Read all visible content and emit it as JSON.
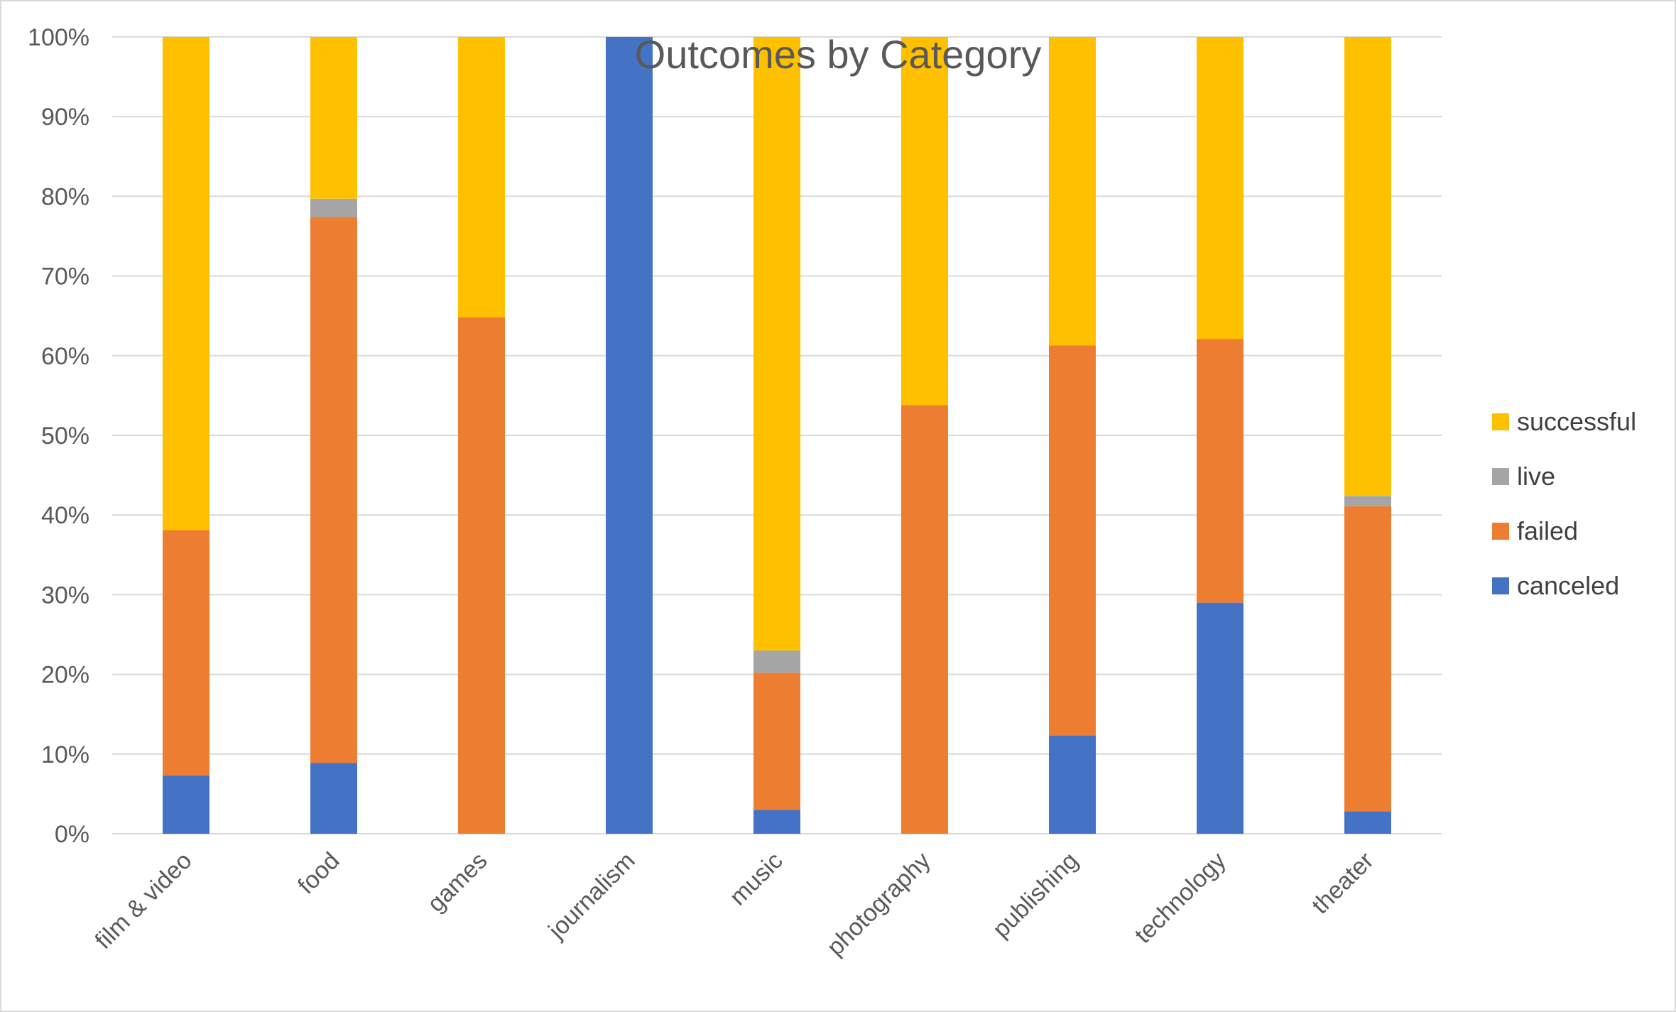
{
  "chart_data": {
    "type": "bar",
    "stacked": "percent",
    "title": "Outcomes by Category",
    "categories": [
      "film & video",
      "food",
      "games",
      "journalism",
      "music",
      "photography",
      "publishing",
      "technology",
      "theater"
    ],
    "series": [
      {
        "name": "canceled",
        "color": "#4472C4",
        "values": [
          7.3,
          8.9,
          0,
          100,
          3.0,
          0,
          12.3,
          29.0,
          2.8
        ]
      },
      {
        "name": "failed",
        "color": "#ED7D31",
        "values": [
          30.8,
          68.5,
          64.8,
          0,
          17.2,
          53.8,
          49.0,
          33.1,
          38.3
        ]
      },
      {
        "name": "live",
        "color": "#A5A5A5",
        "values": [
          0,
          2.3,
          0,
          0,
          2.8,
          0,
          0,
          0,
          1.3
        ]
      },
      {
        "name": "successful",
        "color": "#FFC000",
        "values": [
          61.9,
          20.3,
          35.2,
          0,
          77.0,
          46.2,
          38.7,
          37.9,
          57.6
        ]
      }
    ],
    "yticks": [
      "0%",
      "10%",
      "20%",
      "30%",
      "40%",
      "50%",
      "60%",
      "70%",
      "80%",
      "90%",
      "100%"
    ],
    "ylim": [
      0,
      100
    ],
    "grid": true,
    "legend_position": "right",
    "legend_order": [
      "successful",
      "live",
      "failed",
      "canceled"
    ]
  }
}
